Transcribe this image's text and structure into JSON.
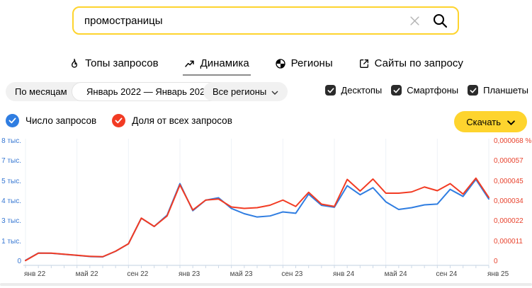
{
  "search": {
    "value": "промостраницы"
  },
  "tabs": [
    {
      "label": "Топы запросов",
      "icon": "fire-icon",
      "active": false
    },
    {
      "label": "Динамика",
      "icon": "trend-icon",
      "active": true
    },
    {
      "label": "Регионы",
      "icon": "globe-icon",
      "active": false
    },
    {
      "label": "Сайты по запросу",
      "icon": "external-link-icon",
      "active": false
    }
  ],
  "filters": {
    "period": "По месяцам",
    "date_range": "Январь 2022 — Январь 2025",
    "region": "Все регионы",
    "devices": [
      {
        "label": "Десктопы",
        "checked": true
      },
      {
        "label": "Смартфоны",
        "checked": true
      },
      {
        "label": "Планшеты",
        "checked": true
      }
    ]
  },
  "legend": [
    {
      "label": "Число запросов",
      "color": "#2f7de1"
    },
    {
      "label": "Доля от всех запросов",
      "color": "#f23b23"
    }
  ],
  "download_button": {
    "label": "Скачать"
  },
  "colors": {
    "accent_yellow": "#fed42e",
    "queries_blue": "#2f7de1",
    "share_red": "#f23b23",
    "left_axis_label": "#3576d2",
    "right_axis_label": "#e8432e",
    "axis_line": "#cdd9e7",
    "gridline": "#eef2f6"
  },
  "chart_data": {
    "type": "line",
    "x": [
      "янв 22",
      "фев 22",
      "мар 22",
      "апр 22",
      "май 22",
      "июн 22",
      "июл 22",
      "авг 22",
      "сен 22",
      "окт 22",
      "ноя 22",
      "дек 22",
      "янв 23",
      "фев 23",
      "мар 23",
      "апр 23",
      "май 23",
      "июн 23",
      "июл 23",
      "авг 23",
      "сен 23",
      "окт 23",
      "ноя 23",
      "дек 23",
      "янв 24",
      "фев 24",
      "мар 24",
      "апр 24",
      "май 24",
      "июн 24",
      "июл 24",
      "авг 24",
      "сен 24",
      "окт 24",
      "ноя 24",
      "дек 24",
      "янв 25"
    ],
    "x_tick_every": 4,
    "x_tick_labels_shown": [
      "янв 22",
      "май 22",
      "сен 22",
      "янв 23",
      "май 23",
      "сен 23",
      "янв 24",
      "май 24",
      "сен 24"
    ],
    "series": [
      {
        "name": "Число запросов",
        "axis": "left",
        "color": "#2f7de1",
        "values": [
          100,
          580,
          570,
          500,
          430,
          350,
          330,
          700,
          1200,
          2900,
          2350,
          3100,
          5200,
          3400,
          4100,
          4260,
          3550,
          3200,
          2980,
          3050,
          3320,
          3230,
          4500,
          3760,
          3630,
          5060,
          4460,
          4930,
          3990,
          3480,
          3600,
          3790,
          3840,
          4820,
          4350,
          5480,
          4180
        ]
      },
      {
        "name": "Доля от всех запросов",
        "axis": "right",
        "color": "#f23b23",
        "values": [
          7e-07,
          4.9e-06,
          4.9e-06,
          4.3e-06,
          3.7e-06,
          3.1e-06,
          2.9e-06,
          6e-06,
          1.02e-05,
          2.47e-05,
          2e-05,
          2.59e-05,
          4.35e-05,
          2.93e-05,
          3.49e-05,
          3.55e-05,
          3.1e-05,
          3.02e-05,
          3.06e-05,
          3.2e-05,
          3.49e-05,
          3.13e-05,
          3.93e-05,
          3.26e-05,
          3.13e-05,
          4.66e-05,
          4e-05,
          4.68e-05,
          3.88e-05,
          3.88e-05,
          3.95e-05,
          4.23e-05,
          4.02e-05,
          4.42e-05,
          3.83e-05,
          4.73e-05,
          3.64e-05
        ]
      }
    ],
    "left_axis": {
      "min": 0,
      "max": 8000,
      "ticks": [
        "8 тыс.",
        "7 тыс.",
        "5 тыс.",
        "4 тыс.",
        "3 тыс.",
        "1 тыс.",
        "0"
      ]
    },
    "right_axis": {
      "min": 0,
      "max": 6.8e-05,
      "ticks": [
        "0,000068 %",
        "0,000057",
        "0,000045",
        "0,000034",
        "0,000022",
        "0,000011",
        "0"
      ]
    },
    "grid": "vertical-at-major-ticks",
    "legend_position": "top-left"
  }
}
